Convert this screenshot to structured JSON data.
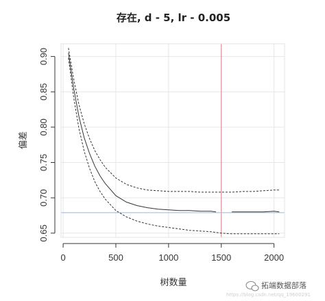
{
  "chart_data": {
    "type": "line",
    "title": "存在, d - 5, lr - 0.005",
    "xlabel": "树数量",
    "ylabel": "偏差",
    "xlim": [
      -20,
      2100
    ],
    "ylim": [
      0.644,
      0.918
    ],
    "x_ticks": [
      0,
      500,
      1000,
      1500,
      2000
    ],
    "x_tick_labels": [
      "0",
      "500",
      "1000",
      "1500",
      "2000"
    ],
    "y_ticks": [
      0.65,
      0.7,
      0.75,
      0.8,
      0.85,
      0.9
    ],
    "y_tick_labels": [
      "0.65",
      "0.70",
      "0.75",
      "0.80",
      "0.85",
      "0.90"
    ],
    "grid": true,
    "reference_lines": [
      {
        "orientation": "vertical",
        "value": 1500,
        "color": "#f08a8a"
      },
      {
        "orientation": "horizontal",
        "value": 0.679,
        "color": "#a9c4e4"
      }
    ],
    "series": [
      {
        "style": "solid",
        "color": "#333333",
        "x": [
          50,
          100,
          150,
          200,
          250,
          300,
          350,
          400,
          500,
          600,
          700,
          800,
          900,
          1000,
          1100,
          1200,
          1300,
          1400,
          1450
        ],
        "y": [
          0.905,
          0.855,
          0.815,
          0.785,
          0.763,
          0.745,
          0.731,
          0.72,
          0.703,
          0.694,
          0.689,
          0.686,
          0.684,
          0.683,
          0.682,
          0.682,
          0.681,
          0.681,
          0.68
        ]
      },
      {
        "style": "solid",
        "color": "#333333",
        "x": [
          1600,
          1700,
          1800,
          1900,
          2000,
          2050
        ],
        "y": [
          0.68,
          0.68,
          0.68,
          0.68,
          0.681,
          0.68
        ]
      },
      {
        "style": "dashed",
        "color": "#333333",
        "x": [
          50,
          100,
          150,
          200,
          250,
          300,
          350,
          400,
          500,
          600,
          700,
          800,
          900,
          1000,
          1100,
          1200,
          1300,
          1400,
          1500,
          1600,
          1700,
          1800,
          1900,
          2000,
          2050
        ],
        "y": [
          0.912,
          0.868,
          0.832,
          0.805,
          0.784,
          0.767,
          0.754,
          0.743,
          0.728,
          0.719,
          0.714,
          0.711,
          0.71,
          0.709,
          0.709,
          0.709,
          0.708,
          0.708,
          0.708,
          0.708,
          0.709,
          0.709,
          0.71,
          0.711,
          0.711
        ]
      },
      {
        "style": "dashed",
        "color": "#333333",
        "x": [
          50,
          100,
          150,
          200,
          250,
          300,
          350,
          400,
          500,
          600,
          700,
          800,
          900,
          1000,
          1100,
          1200,
          1300,
          1400,
          1500,
          1600,
          1700,
          1800,
          1900,
          2000,
          2050
        ],
        "y": [
          0.898,
          0.842,
          0.798,
          0.766,
          0.742,
          0.723,
          0.709,
          0.698,
          0.682,
          0.673,
          0.667,
          0.663,
          0.66,
          0.658,
          0.656,
          0.654,
          0.653,
          0.652,
          0.65,
          0.649,
          0.649,
          0.649,
          0.649,
          0.649,
          0.649
        ]
      }
    ]
  },
  "watermark": {
    "text": "拓端数据部落",
    "url": "https://blog.csdn.net/qq_19600291",
    "icon": "wechat-icon"
  }
}
